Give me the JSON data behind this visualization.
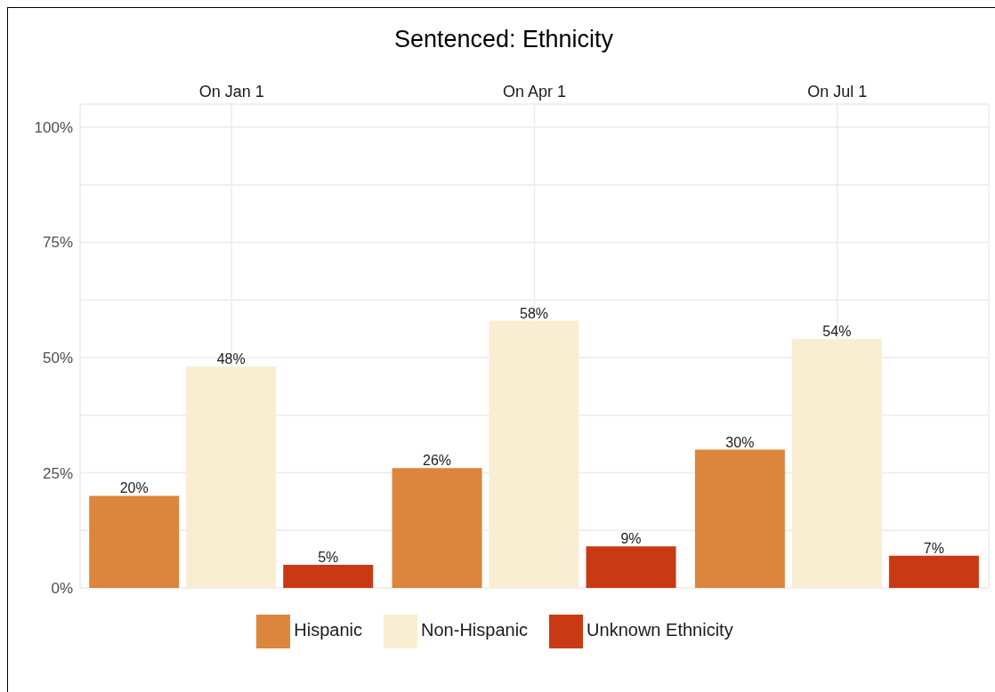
{
  "chart_data": {
    "type": "bar",
    "title": "Sentenced: Ethnicity",
    "categories": [
      "On Jan 1",
      "On Apr 1",
      "On Jul 1"
    ],
    "series": [
      {
        "name": "Hispanic",
        "color": "#dc853c",
        "values": [
          20,
          26,
          30
        ],
        "value_labels": [
          "20%",
          "26%",
          "30%"
        ]
      },
      {
        "name": "Non-Hispanic",
        "color": "#f9edd2",
        "values": [
          48,
          58,
          54
        ],
        "value_labels": [
          "48%",
          "58%",
          "54%"
        ]
      },
      {
        "name": "Unknown Ethnicity",
        "color": "#c93a14",
        "values": [
          5,
          9,
          7
        ],
        "value_labels": [
          "5%",
          "9%",
          "7%"
        ]
      }
    ],
    "ylim": [
      0,
      105
    ],
    "yticks": [
      {
        "value": 0,
        "label": "0%"
      },
      {
        "value": 12.5,
        "label": null
      },
      {
        "value": 25,
        "label": "25%"
      },
      {
        "value": 37.5,
        "label": null
      },
      {
        "value": 50,
        "label": "50%"
      },
      {
        "value": 62.5,
        "label": null
      },
      {
        "value": 75,
        "label": "75%"
      },
      {
        "value": 87.5,
        "label": null
      },
      {
        "value": 100,
        "label": "100%"
      }
    ],
    "grid": true,
    "legend": "bottom"
  }
}
